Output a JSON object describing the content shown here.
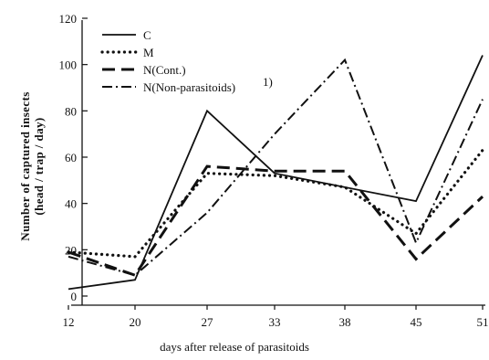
{
  "chart_data": {
    "type": "line",
    "xlabel": "days after release of parasitoids",
    "ylabel": "Number of captured insects",
    "ylabel_sub": "(head / trap / day)",
    "x": [
      12,
      20,
      27,
      33,
      38,
      45,
      51
    ],
    "x_tick_labels": [
      "12",
      "20",
      "27",
      "33",
      "38",
      "45",
      "51"
    ],
    "ylim": [
      0,
      120
    ],
    "y_ticks": [
      0,
      20,
      40,
      60,
      80,
      100,
      120
    ],
    "grid": false,
    "legend_position": "top-left",
    "series": [
      {
        "name": "C",
        "style": "solid",
        "x": [
          12,
          20,
          27,
          33,
          38,
          45,
          51
        ],
        "values": [
          3,
          7,
          80,
          53,
          47,
          41,
          104
        ]
      },
      {
        "name": "M",
        "style": "dotted",
        "x": [
          12,
          20,
          27,
          33,
          38,
          45,
          51
        ],
        "values": [
          19,
          17,
          53,
          52,
          47,
          27,
          63
        ]
      },
      {
        "name": "N(Cont.)",
        "style": "dashed",
        "x": [
          12,
          20,
          27,
          33,
          38,
          45,
          51
        ],
        "values": [
          19,
          9,
          56,
          54,
          54,
          16,
          43
        ]
      },
      {
        "name": "N(Non-parasitoids)",
        "style": "dashdot",
        "x": [
          12,
          20,
          27,
          33,
          38,
          45,
          51
        ],
        "values": [
          17,
          9,
          36,
          70,
          102,
          23,
          85
        ]
      }
    ],
    "footnote_mark": "1)"
  }
}
